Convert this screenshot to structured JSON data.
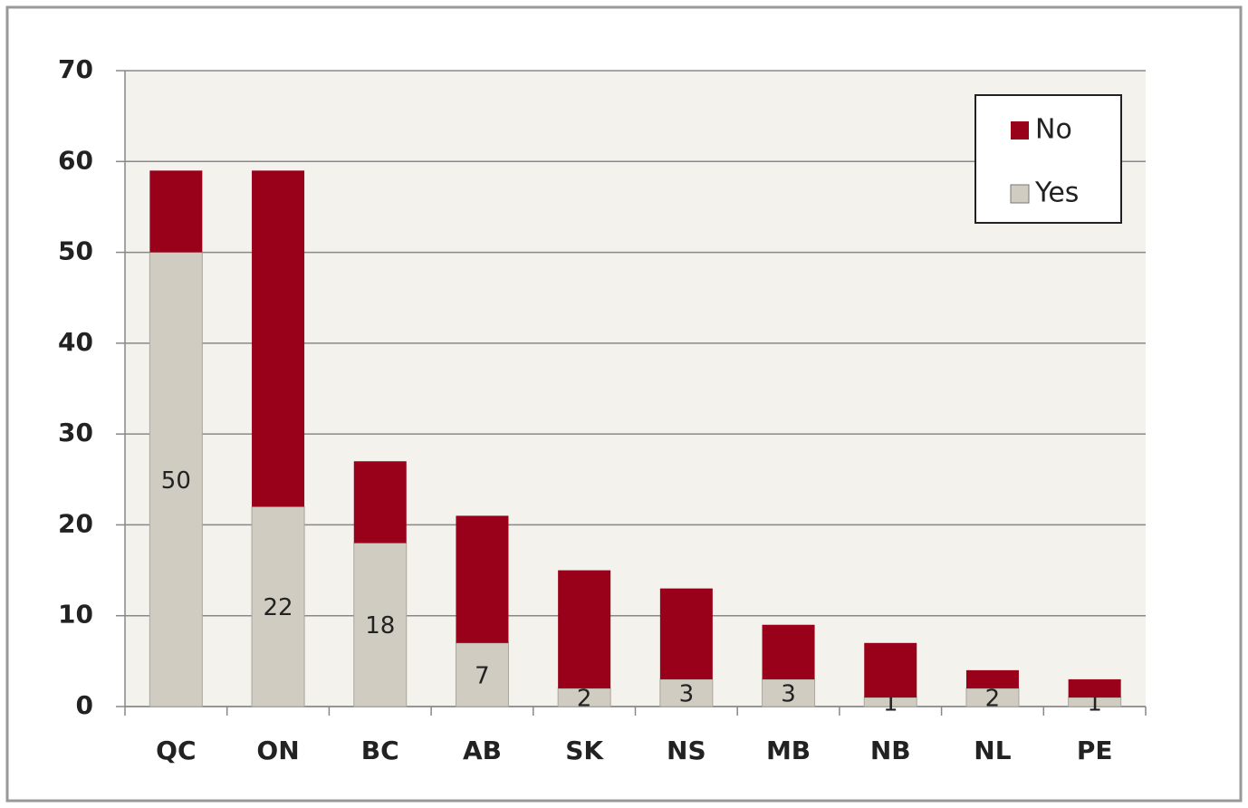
{
  "chart_data": {
    "type": "stacked_bar",
    "categories": [
      "QC",
      "ON",
      "BC",
      "AB",
      "SK",
      "NS",
      "MB",
      "NB",
      "NL",
      "PE"
    ],
    "series": [
      {
        "name": "Yes",
        "color": "#d0ccc2",
        "values": [
          50,
          22,
          18,
          7,
          2,
          3,
          3,
          1,
          2,
          1
        ]
      },
      {
        "name": "No",
        "color": "#990019",
        "values": [
          9,
          37,
          9,
          14,
          13,
          10,
          6,
          6,
          2,
          2
        ]
      }
    ],
    "ylim": [
      0,
      70
    ],
    "yticks": [
      0,
      10,
      20,
      30,
      40,
      50,
      60,
      70
    ],
    "grid": true,
    "legend": "upper right"
  }
}
